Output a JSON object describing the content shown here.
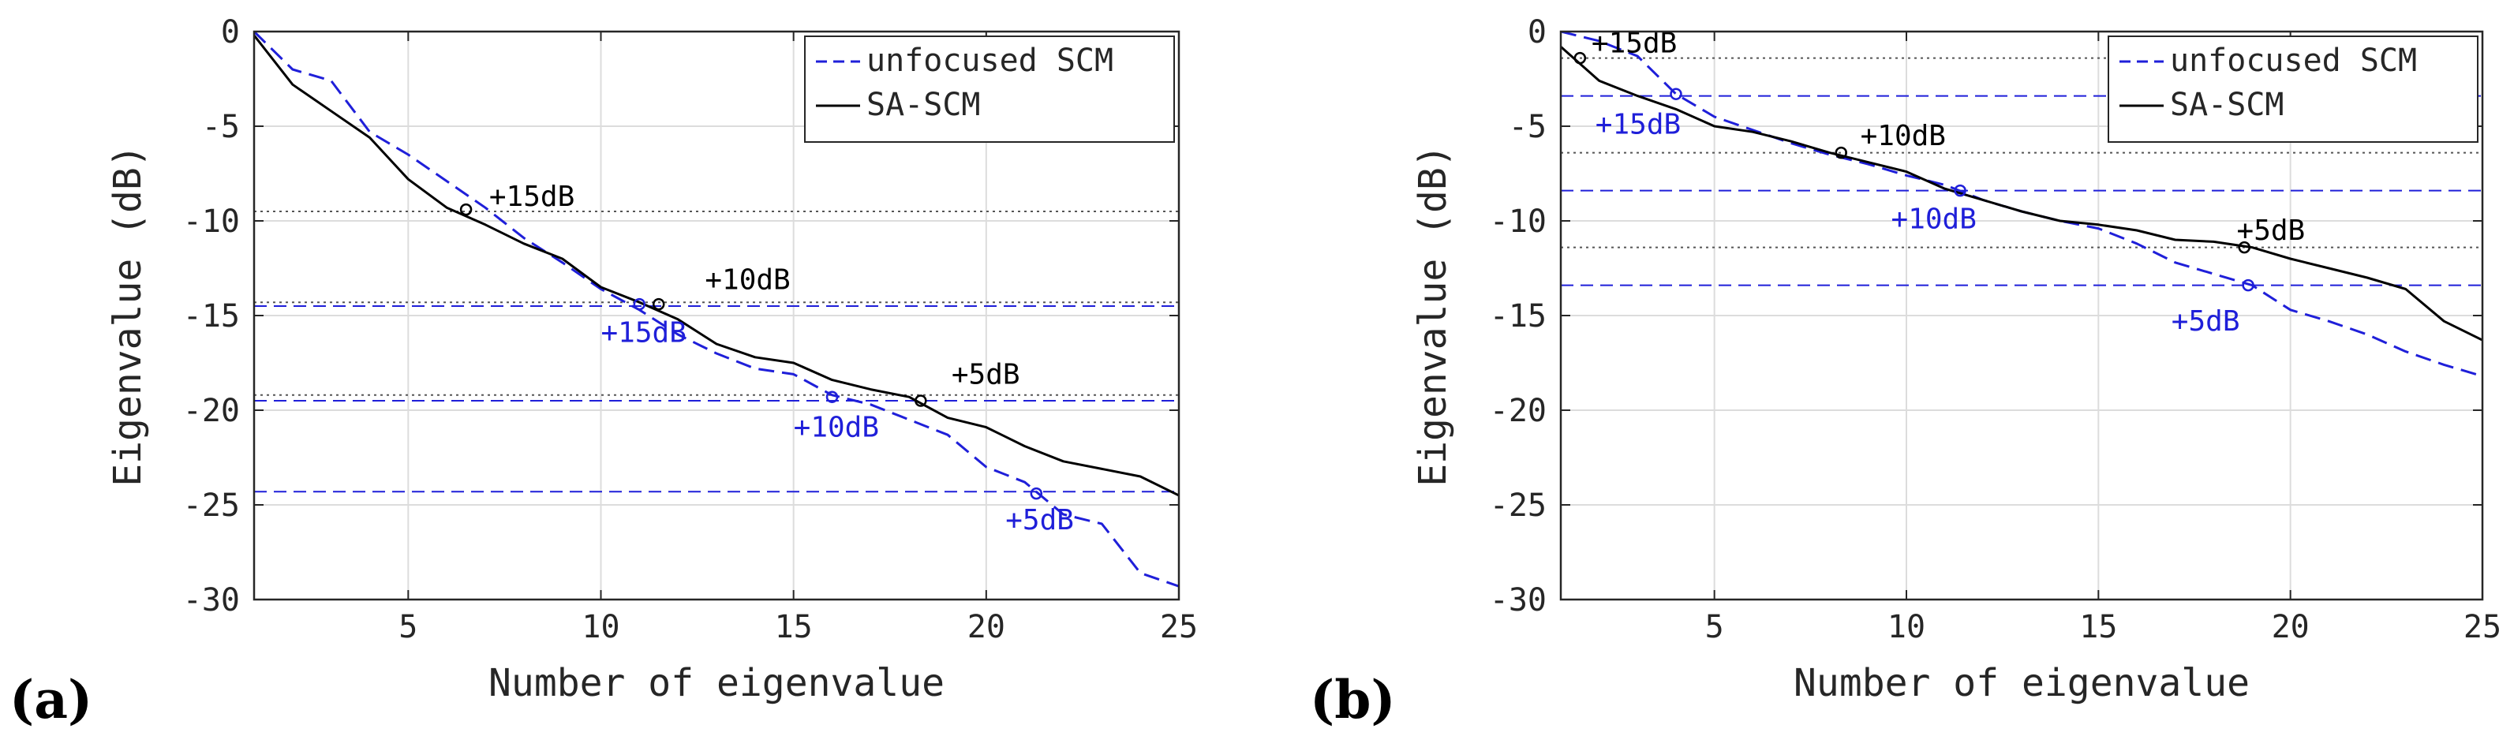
{
  "chart_data": [
    {
      "type": "line",
      "panel_label": "(a)",
      "xlabel": "Number of eigenvalue",
      "ylabel": "Eigenvalue (dB)",
      "xlim": [
        1,
        25
      ],
      "ylim": [
        -30,
        0
      ],
      "xticks": [
        "5",
        "10",
        "15",
        "20",
        "25"
      ],
      "yticks": [
        "0",
        "-5",
        "-10",
        "-15",
        "-20",
        "-25",
        "-30"
      ],
      "grid": true,
      "legend": {
        "location": "top-right",
        "entries": [
          "unfocused SCM",
          "SA-SCM"
        ]
      },
      "x": [
        1,
        2,
        3,
        4,
        5,
        6,
        7,
        8,
        9,
        10,
        11,
        12,
        13,
        14,
        15,
        16,
        17,
        18,
        19,
        20,
        21,
        22,
        23,
        24,
        25
      ],
      "series": [
        {
          "name": "unfocused SCM",
          "color": "#1f1fd9",
          "style": "dashed",
          "values": [
            0,
            -2,
            -2.6,
            -5.3,
            -6.5,
            -7.9,
            -9.3,
            -10.9,
            -12.2,
            -13.6,
            -14.7,
            -16,
            -17,
            -17.8,
            -18.1,
            -19.2,
            -19.7,
            -20.5,
            -21.3,
            -23,
            -23.8,
            -25.5,
            -26,
            -28.6,
            -29.3
          ]
        },
        {
          "name": "SA-SCM",
          "color": "#000000",
          "style": "solid",
          "values": [
            -0.2,
            -2.8,
            -4.2,
            -5.6,
            -7.8,
            -9.3,
            -10.2,
            -11.2,
            -12,
            -13.5,
            -14.3,
            -15.2,
            -16.5,
            -17.2,
            -17.5,
            -18.4,
            -18.9,
            -19.3,
            -20.4,
            -20.9,
            -21.9,
            -22.7,
            -23.1,
            -23.5,
            -24.5
          ]
        }
      ],
      "hlines": [
        {
          "y": -9.5,
          "color": "#555555",
          "style": "dotted"
        },
        {
          "y": -14.3,
          "color": "#555555",
          "style": "dotted"
        },
        {
          "y": -14.5,
          "color": "#1f1fd9",
          "style": "dashed"
        },
        {
          "y": -19.2,
          "color": "#555555",
          "style": "dotted"
        },
        {
          "y": -19.5,
          "color": "#1f1fd9",
          "style": "dashed"
        },
        {
          "y": -24.3,
          "color": "#1f1fd9",
          "style": "dashed"
        }
      ],
      "markers": [
        {
          "x": 6.5,
          "y": -9.4,
          "color": "#000000"
        },
        {
          "x": 11.5,
          "y": -14.4,
          "color": "#000000"
        },
        {
          "x": 18.3,
          "y": -19.5,
          "color": "#000000"
        },
        {
          "x": 11.0,
          "y": -14.4,
          "color": "#1f1fd9"
        },
        {
          "x": 16.0,
          "y": -19.3,
          "color": "#1f1fd9"
        },
        {
          "x": 21.3,
          "y": -24.4,
          "color": "#1f1fd9"
        }
      ],
      "annotations": [
        {
          "text": "+15dB",
          "x": 7.1,
          "y": -9.2,
          "color": "#000000"
        },
        {
          "text": "+10dB",
          "x": 12.7,
          "y": -13.6,
          "color": "#000000"
        },
        {
          "text": "+5dB",
          "x": 19.1,
          "y": -18.6,
          "color": "#000000"
        },
        {
          "text": "+15dB",
          "x": 10.0,
          "y": -16.4,
          "color": "#1f1fd9"
        },
        {
          "text": "+10dB",
          "x": 15.0,
          "y": -21.4,
          "color": "#1f1fd9"
        },
        {
          "text": "+5dB",
          "x": 20.5,
          "y": -26.3,
          "color": "#1f1fd9"
        }
      ]
    },
    {
      "type": "line",
      "panel_label": "(b)",
      "xlabel": "Number of eigenvalue",
      "ylabel": "Eigenvalue (dB)",
      "xlim": [
        1,
        25
      ],
      "ylim": [
        -30,
        0
      ],
      "xticks": [
        "5",
        "10",
        "15",
        "20",
        "25"
      ],
      "yticks": [
        "0",
        "-5",
        "-10",
        "-15",
        "-20",
        "-25",
        "-30"
      ],
      "grid": true,
      "legend": {
        "location": "top-right",
        "entries": [
          "unfocused SCM",
          "SA-SCM"
        ]
      },
      "x": [
        1,
        2,
        3,
        4,
        5,
        6,
        7,
        8,
        9,
        10,
        11,
        12,
        13,
        14,
        15,
        16,
        17,
        18,
        19,
        20,
        21,
        22,
        23,
        24,
        25
      ],
      "series": [
        {
          "name": "unfocused SCM",
          "color": "#1f1fd9",
          "style": "dashed",
          "values": [
            0,
            -0.5,
            -1.3,
            -3.3,
            -4.5,
            -5.2,
            -5.9,
            -6.5,
            -7,
            -7.6,
            -8.1,
            -8.9,
            -9.5,
            -10,
            -10.4,
            -11.2,
            -12.2,
            -12.8,
            -13.4,
            -14.7,
            -15.3,
            -16,
            -16.9,
            -17.6,
            -18.2
          ]
        },
        {
          "name": "SA-SCM",
          "color": "#000000",
          "style": "solid",
          "values": [
            -0.8,
            -2.6,
            -3.4,
            -4.1,
            -5,
            -5.3,
            -5.8,
            -6.4,
            -6.9,
            -7.4,
            -8.3,
            -8.9,
            -9.5,
            -10,
            -10.2,
            -10.5,
            -11,
            -11.1,
            -11.4,
            -12,
            -12.5,
            -13,
            -13.6,
            -15.3,
            -16.3
          ]
        }
      ],
      "hlines": [
        {
          "y": -1.4,
          "color": "#555555",
          "style": "dotted"
        },
        {
          "y": -3.4,
          "color": "#1f1fd9",
          "style": "dashed"
        },
        {
          "y": -6.4,
          "color": "#555555",
          "style": "dotted"
        },
        {
          "y": -8.4,
          "color": "#1f1fd9",
          "style": "dashed"
        },
        {
          "y": -11.4,
          "color": "#555555",
          "style": "dotted"
        },
        {
          "y": -13.4,
          "color": "#1f1fd9",
          "style": "dashed"
        }
      ],
      "markers": [
        {
          "x": 1.5,
          "y": -1.4,
          "color": "#000000"
        },
        {
          "x": 8.3,
          "y": -6.4,
          "color": "#000000"
        },
        {
          "x": 18.8,
          "y": -11.4,
          "color": "#000000"
        },
        {
          "x": 4.0,
          "y": -3.3,
          "color": "#1f1fd9"
        },
        {
          "x": 11.4,
          "y": -8.4,
          "color": "#1f1fd9"
        },
        {
          "x": 18.9,
          "y": -13.4,
          "color": "#1f1fd9"
        }
      ],
      "annotations": [
        {
          "text": "+15dB",
          "x": 1.8,
          "y": -1.1,
          "color": "#000000"
        },
        {
          "text": "+10dB",
          "x": 8.8,
          "y": -6.0,
          "color": "#000000"
        },
        {
          "text": "+5dB",
          "x": 18.6,
          "y": -11.0,
          "color": "#000000"
        },
        {
          "text": "+15dB",
          "x": 1.9,
          "y": -5.4,
          "color": "#1f1fd9"
        },
        {
          "text": "+10dB",
          "x": 9.6,
          "y": -10.4,
          "color": "#1f1fd9"
        },
        {
          "text": "+5dB",
          "x": 16.9,
          "y": -15.8,
          "color": "#1f1fd9"
        }
      ]
    }
  ]
}
